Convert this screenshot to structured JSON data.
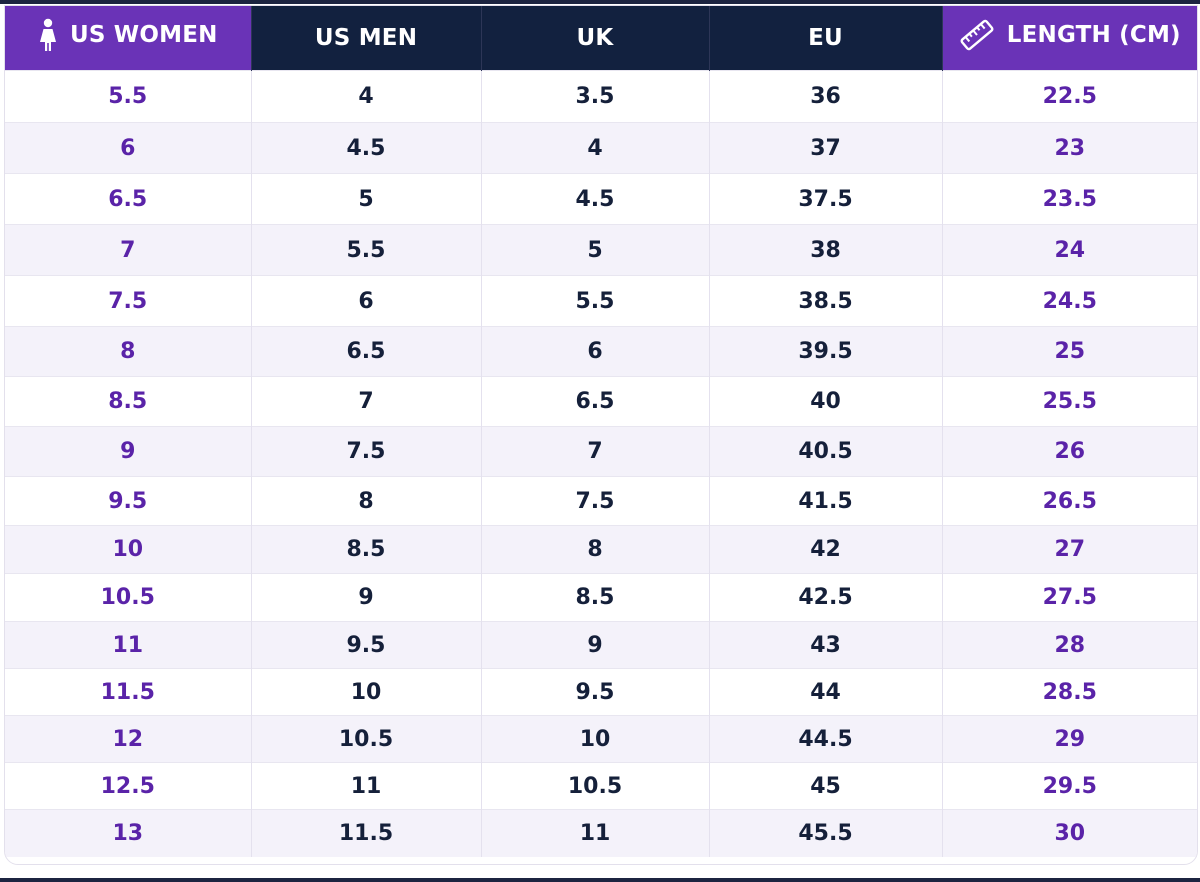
{
  "colors": {
    "header_purple": "#6a33b7",
    "header_navy": "#12213f",
    "text_purple": "#5a23a8",
    "text_navy": "#15203a",
    "row_alt": "#f4f2fa"
  },
  "headers": [
    {
      "label": "US WOMEN",
      "icon": "woman-icon",
      "style": "purple"
    },
    {
      "label": "US MEN",
      "icon": null,
      "style": "navy"
    },
    {
      "label": "UK",
      "icon": null,
      "style": "navy"
    },
    {
      "label": "EU",
      "icon": null,
      "style": "navy"
    },
    {
      "label": "LENGTH (CM)",
      "icon": "ruler-icon",
      "style": "purple"
    }
  ],
  "rows": [
    [
      "5.5",
      "4",
      "3.5",
      "36",
      "22.5"
    ],
    [
      "6",
      "4.5",
      "4",
      "37",
      "23"
    ],
    [
      "6.5",
      "5",
      "4.5",
      "37.5",
      "23.5"
    ],
    [
      "7",
      "5.5",
      "5",
      "38",
      "24"
    ],
    [
      "7.5",
      "6",
      "5.5",
      "38.5",
      "24.5"
    ],
    [
      "8",
      "6.5",
      "6",
      "39.5",
      "25"
    ],
    [
      "8.5",
      "7",
      "6.5",
      "40",
      "25.5"
    ],
    [
      "9",
      "7.5",
      "7",
      "40.5",
      "26"
    ],
    [
      "9.5",
      "8",
      "7.5",
      "41.5",
      "26.5"
    ],
    [
      "10",
      "8.5",
      "8",
      "42",
      "27"
    ],
    [
      "10.5",
      "9",
      "8.5",
      "42.5",
      "27.5"
    ],
    [
      "11",
      "9.5",
      "9",
      "43",
      "28"
    ],
    [
      "11.5",
      "10",
      "9.5",
      "44",
      "28.5"
    ],
    [
      "12",
      "10.5",
      "10",
      "44.5",
      "29"
    ],
    [
      "12.5",
      "11",
      "10.5",
      "45",
      "29.5"
    ],
    [
      "13",
      "11.5",
      "11",
      "45.5",
      "30"
    ]
  ]
}
